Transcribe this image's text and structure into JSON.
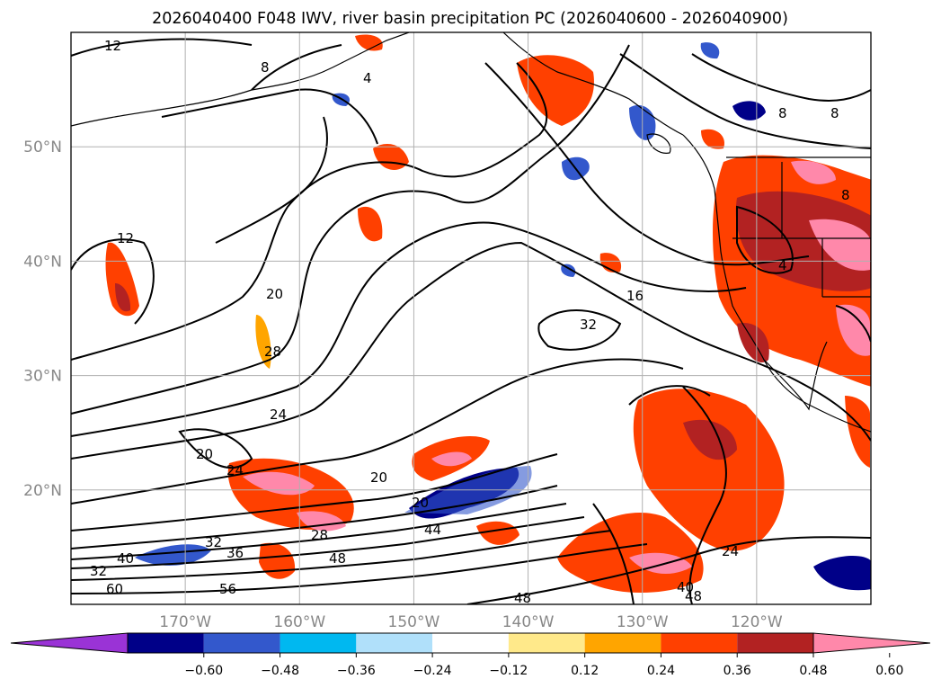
{
  "title": "2026040400 F048 IWV, river basin precipitation PC (2026040600 - 2026040900)",
  "map": {
    "lon_range": [
      -180,
      -110
    ],
    "lat_range": [
      10,
      60
    ],
    "lon_ticks": [
      {
        "value": -170,
        "label": "170°W"
      },
      {
        "value": -160,
        "label": "160°W"
      },
      {
        "value": -150,
        "label": "150°W"
      },
      {
        "value": -140,
        "label": "140°W"
      },
      {
        "value": -130,
        "label": "130°W"
      },
      {
        "value": -120,
        "label": "120°W"
      }
    ],
    "lat_ticks": [
      {
        "value": 20,
        "label": "20°N"
      },
      {
        "value": 30,
        "label": "30°N"
      },
      {
        "value": 40,
        "label": "40°N"
      },
      {
        "value": 50,
        "label": "50°N"
      }
    ],
    "grid": true
  },
  "contour_labels": [
    "12",
    "8",
    "4",
    "8",
    "8",
    "12",
    "20",
    "28",
    "16",
    "32",
    "24",
    "20",
    "24",
    "20",
    "20",
    "44",
    "32",
    "36",
    "40",
    "32",
    "48",
    "28",
    "60",
    "56",
    "48",
    "40",
    "48",
    "24",
    "8",
    "4"
  ],
  "colorbar": {
    "ticks": [
      "−0.60",
      "−0.48",
      "−0.36",
      "−0.24",
      "−0.12",
      "0.12",
      "0.24",
      "0.36",
      "0.48",
      "0.60"
    ],
    "colors": [
      "#9a33d6",
      "#000088",
      "#3358cc",
      "#00b8f0",
      "#b0e0fa",
      "#ffffff",
      "#ffe98a",
      "#ffa500",
      "#ff4000",
      "#b22222",
      "#ff88aa"
    ]
  }
}
